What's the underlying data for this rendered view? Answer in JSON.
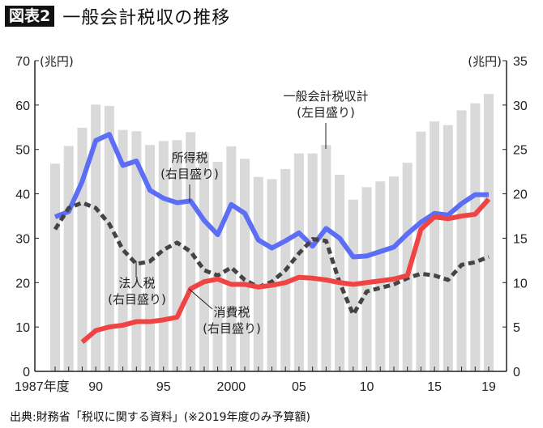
{
  "header": {
    "badge": "図表2",
    "title": "一般会計税収の推移"
  },
  "source": "出典:財務省「税収に関する資料」(※2019年度のみ予算額)",
  "chart_data": {
    "type": "bar+line",
    "left_axis": {
      "unit": "(兆円)",
      "ylim": [
        0,
        70
      ],
      "ticks": [
        0,
        10,
        20,
        30,
        40,
        50,
        60,
        70
      ]
    },
    "right_axis": {
      "unit": "(兆円)",
      "ylim": [
        0,
        35
      ],
      "ticks": [
        0,
        5,
        10,
        15,
        20,
        25,
        30,
        35
      ]
    },
    "x": [
      1987,
      1988,
      1989,
      1990,
      1991,
      1992,
      1993,
      1994,
      1995,
      1996,
      1997,
      1998,
      1999,
      2000,
      2001,
      2002,
      2003,
      2004,
      2005,
      2006,
      2007,
      2008,
      2009,
      2010,
      2011,
      2012,
      2013,
      2014,
      2015,
      2016,
      2017,
      2018,
      2019
    ],
    "x_tick_labels": [
      {
        "year": 1987,
        "label": "1987年度"
      },
      {
        "year": 1990,
        "label": "90"
      },
      {
        "year": 1995,
        "label": "95"
      },
      {
        "year": 2000,
        "label": "2000"
      },
      {
        "year": 2005,
        "label": "05"
      },
      {
        "year": 2010,
        "label": "10"
      },
      {
        "year": 2015,
        "label": "15"
      },
      {
        "year": 2019,
        "label": "19"
      }
    ],
    "bars": {
      "name": "一般会計税収計",
      "axis_note": "(左目盛り)",
      "color": "#d9d9d9",
      "values": [
        46.8,
        50.8,
        54.9,
        60.1,
        59.8,
        54.4,
        54.1,
        51.0,
        51.9,
        52.1,
        53.9,
        49.4,
        47.2,
        50.7,
        47.9,
        43.8,
        43.3,
        45.6,
        49.1,
        49.1,
        51.0,
        44.3,
        38.7,
        41.5,
        42.8,
        43.9,
        47.0,
        54.0,
        56.3,
        55.5,
        58.8,
        60.4,
        62.5
      ]
    },
    "series": [
      {
        "name": "所得税",
        "axis_note": "(右目盛り)",
        "color": "#5b6ef5",
        "style": "solid",
        "values": [
          17.4,
          18.0,
          21.4,
          26.0,
          26.7,
          23.2,
          23.7,
          20.4,
          19.5,
          19.0,
          19.2,
          17.0,
          15.4,
          18.8,
          17.8,
          14.8,
          13.9,
          14.7,
          15.6,
          14.1,
          16.1,
          15.0,
          12.9,
          13.0,
          13.5,
          14.0,
          15.5,
          16.8,
          17.8,
          17.6,
          18.9,
          19.9,
          19.9
        ]
      },
      {
        "name": "法人税",
        "axis_note": "(右目盛り)",
        "color": "#444444",
        "style": "dashed",
        "values": [
          16.0,
          18.4,
          19.0,
          18.4,
          16.6,
          13.7,
          12.1,
          12.4,
          13.7,
          14.5,
          13.5,
          11.4,
          10.8,
          11.7,
          10.3,
          9.5,
          10.1,
          11.4,
          13.3,
          14.9,
          14.7,
          10.0,
          6.4,
          9.0,
          9.4,
          9.8,
          10.5,
          11.0,
          10.8,
          10.3,
          12.0,
          12.3,
          12.9
        ]
      },
      {
        "name": "消費税",
        "axis_note": "(右目盛り)",
        "color": "#f04444",
        "style": "solid",
        "values": [
          null,
          null,
          3.3,
          4.6,
          5.0,
          5.2,
          5.6,
          5.6,
          5.8,
          6.1,
          9.3,
          10.1,
          10.4,
          9.8,
          9.8,
          9.5,
          9.7,
          10.0,
          10.6,
          10.5,
          10.3,
          10.0,
          9.8,
          10.0,
          10.2,
          10.4,
          10.8,
          16.0,
          17.4,
          17.2,
          17.5,
          17.7,
          19.4
        ]
      }
    ]
  }
}
